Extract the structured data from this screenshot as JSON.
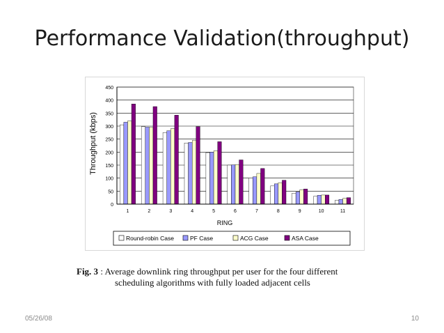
{
  "slide": {
    "title": "Performance Validation(throughput)",
    "date": "05/26/08",
    "page_number": "10"
  },
  "caption": {
    "label": "Fig. 3",
    "line1": " : Average downlink ring throughput per user for the four different",
    "line2": "scheduling algorithms with fully loaded adjacent cells"
  },
  "chart_data": {
    "type": "bar",
    "xlabel": "RING",
    "ylabel": "Throughput (kbps)",
    "ylim": [
      0,
      450
    ],
    "yticks": [
      0,
      50,
      100,
      150,
      200,
      250,
      300,
      350,
      400,
      450
    ],
    "categories": [
      "1",
      "2",
      "3",
      "4",
      "5",
      "6",
      "7",
      "8",
      "9",
      "10",
      "11"
    ],
    "grid": true,
    "legend_position": "bottom",
    "series": [
      {
        "name": "Round-robin Case",
        "color": "#ffffff",
        "values": [
          305,
          298,
          275,
          235,
          198,
          150,
          100,
          70,
          42,
          30,
          15
        ]
      },
      {
        "name": "PF Case",
        "color": "#9999ff",
        "values": [
          315,
          296,
          282,
          237,
          200,
          151,
          105,
          78,
          47,
          34,
          18
        ]
      },
      {
        "name": "ACG Case",
        "color": "#ffffcc",
        "values": [
          320,
          295,
          290,
          245,
          205,
          152,
          118,
          82,
          55,
          35,
          22
        ]
      },
      {
        "name": "ASA Case",
        "color": "#800080",
        "values": [
          385,
          375,
          342,
          298,
          240,
          170,
          137,
          92,
          58,
          35,
          25
        ]
      }
    ]
  }
}
